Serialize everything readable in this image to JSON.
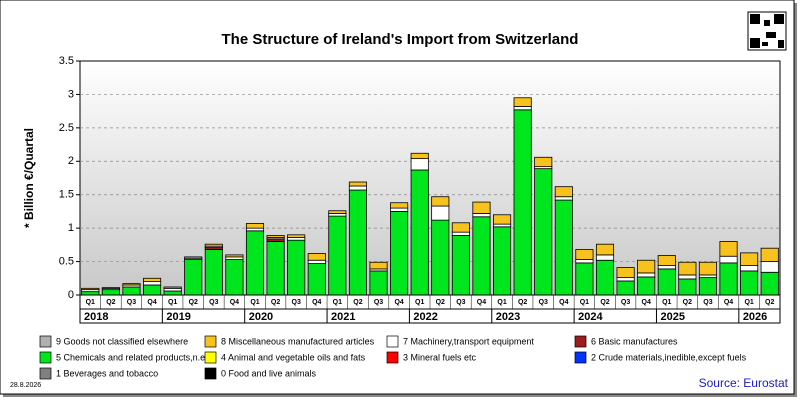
{
  "chart_data": {
    "type": "stacked_bar",
    "title": "The Structure of Ireland's Import from Switzerland",
    "y_label": "* Billion €/Quartal",
    "date": "28.8.2026",
    "source": "Source: Eurostat",
    "categories": [
      "Q1",
      "Q2",
      "Q3",
      "Q4",
      "Q1",
      "Q2",
      "Q3",
      "Q4",
      "Q1",
      "Q2",
      "Q3",
      "Q4",
      "Q1",
      "Q2",
      "Q3",
      "Q4",
      "Q1",
      "Q2",
      "Q3",
      "Q4",
      "Q1",
      "Q2",
      "Q3",
      "Q4",
      "Q1",
      "Q2",
      "Q3",
      "Q4",
      "Q1",
      "Q2",
      "Q3",
      "Q4",
      "Q1",
      "Q2"
    ],
    "years": [
      "2018",
      "2019",
      "2020",
      "2021",
      "2022",
      "2023",
      "2024",
      "2025",
      "2026"
    ],
    "ylim": [
      0,
      3.5
    ],
    "yticks": [
      0,
      0.5,
      1,
      1.5,
      2,
      2.5,
      3,
      3.5
    ],
    "grid": true,
    "series": [
      {
        "name": "9 Goods not classified elsewhere",
        "color": "#b0b0b0",
        "values": [
          0,
          0,
          0,
          0,
          0,
          0,
          0,
          0,
          0,
          0,
          0,
          0,
          0,
          0,
          0,
          0,
          0,
          0,
          0,
          0,
          0,
          0,
          0,
          0,
          0,
          0,
          0,
          0,
          0,
          0,
          0,
          0,
          0,
          0
        ]
      },
      {
        "name": "8 Miscellaneous manufactured articles",
        "color": "#f7c21d",
        "values": [
          0.02,
          0.01,
          0.02,
          0.05,
          0.02,
          0.02,
          0.03,
          0.03,
          0.07,
          0.03,
          0.04,
          0.1,
          0.04,
          0.06,
          0.1,
          0.08,
          0.08,
          0.14,
          0.14,
          0.17,
          0.14,
          0.13,
          0.14,
          0.15,
          0.15,
          0.16,
          0.15,
          0.19,
          0.15,
          0.19,
          0.19,
          0.22,
          0.19,
          0.2
        ]
      },
      {
        "name": "7 Machinery,transport equipment",
        "color": "#ffffff",
        "values": [
          0.03,
          0.02,
          0.03,
          0.05,
          0.04,
          0.02,
          0.02,
          0.04,
          0.04,
          0.02,
          0.04,
          0.05,
          0.04,
          0.06,
          0.03,
          0.05,
          0.17,
          0.21,
          0.05,
          0.05,
          0.04,
          0.05,
          0.03,
          0.05,
          0.05,
          0.08,
          0.05,
          0.06,
          0.05,
          0.06,
          0.04,
          0.1,
          0.08,
          0.16
        ]
      },
      {
        "name": "6 Basic manufactures",
        "color": "#9e1c1c",
        "values": [
          0,
          0,
          0,
          0,
          0,
          0,
          0.03,
          0,
          0,
          0.04,
          0,
          0,
          0,
          0,
          0,
          0,
          0,
          0,
          0,
          0,
          0,
          0,
          0,
          0,
          0,
          0,
          0,
          0,
          0,
          0,
          0,
          0,
          0,
          0
        ]
      },
      {
        "name": "5 Chemicals and related products,n.e.s.",
        "color": "#00e61e",
        "values": [
          0.05,
          0.08,
          0.12,
          0.15,
          0.06,
          0.53,
          0.68,
          0.53,
          0.96,
          0.8,
          0.82,
          0.47,
          1.18,
          1.57,
          0.36,
          1.25,
          1.87,
          1.12,
          0.89,
          1.17,
          1.02,
          2.77,
          1.89,
          1.42,
          0.48,
          0.52,
          0.21,
          0.27,
          0.39,
          0.24,
          0.26,
          0.48,
          0.36,
          0.34
        ]
      },
      {
        "name": "4 Animal and vegetable oils and fats",
        "color": "#ffff00",
        "values": [
          0,
          0,
          0,
          0,
          0,
          0,
          0,
          0,
          0,
          0,
          0,
          0,
          0,
          0,
          0,
          0,
          0,
          0,
          0,
          0,
          0,
          0,
          0,
          0,
          0,
          0,
          0,
          0,
          0,
          0,
          0,
          0,
          0,
          0
        ]
      },
      {
        "name": "3 Mineral fuels etc",
        "color": "#ff0000",
        "values": [
          0,
          0,
          0,
          0,
          0,
          0,
          0,
          0,
          0,
          0,
          0,
          0,
          0,
          0,
          0,
          0,
          0,
          0,
          0,
          0,
          0,
          0,
          0,
          0,
          0,
          0,
          0,
          0,
          0,
          0,
          0,
          0,
          0,
          0
        ]
      },
      {
        "name": "2 Crude materials,inedible,except fuels",
        "color": "#0033ff",
        "values": [
          0,
          0,
          0,
          0,
          0,
          0,
          0,
          0,
          0,
          0,
          0,
          0,
          0,
          0,
          0,
          0,
          0,
          0,
          0,
          0,
          0,
          0,
          0,
          0,
          0,
          0,
          0,
          0,
          0,
          0,
          0,
          0,
          0,
          0
        ]
      },
      {
        "name": "1 Beverages and tobacco",
        "color": "#808080",
        "values": [
          0,
          0,
          0,
          0,
          0,
          0,
          0,
          0,
          0,
          0,
          0,
          0,
          0,
          0,
          0,
          0,
          0,
          0,
          0,
          0,
          0,
          0,
          0,
          0,
          0,
          0,
          0,
          0,
          0,
          0,
          0,
          0,
          0,
          0
        ]
      },
      {
        "name": "0 Food and live animals",
        "color": "#000000",
        "values": [
          0,
          0,
          0,
          0,
          0,
          0,
          0,
          0,
          0,
          0,
          0,
          0,
          0,
          0,
          0,
          0,
          0,
          0,
          0,
          0,
          0,
          0,
          0,
          0,
          0,
          0,
          0,
          0,
          0,
          0,
          0,
          0,
          0,
          0
        ]
      }
    ]
  }
}
